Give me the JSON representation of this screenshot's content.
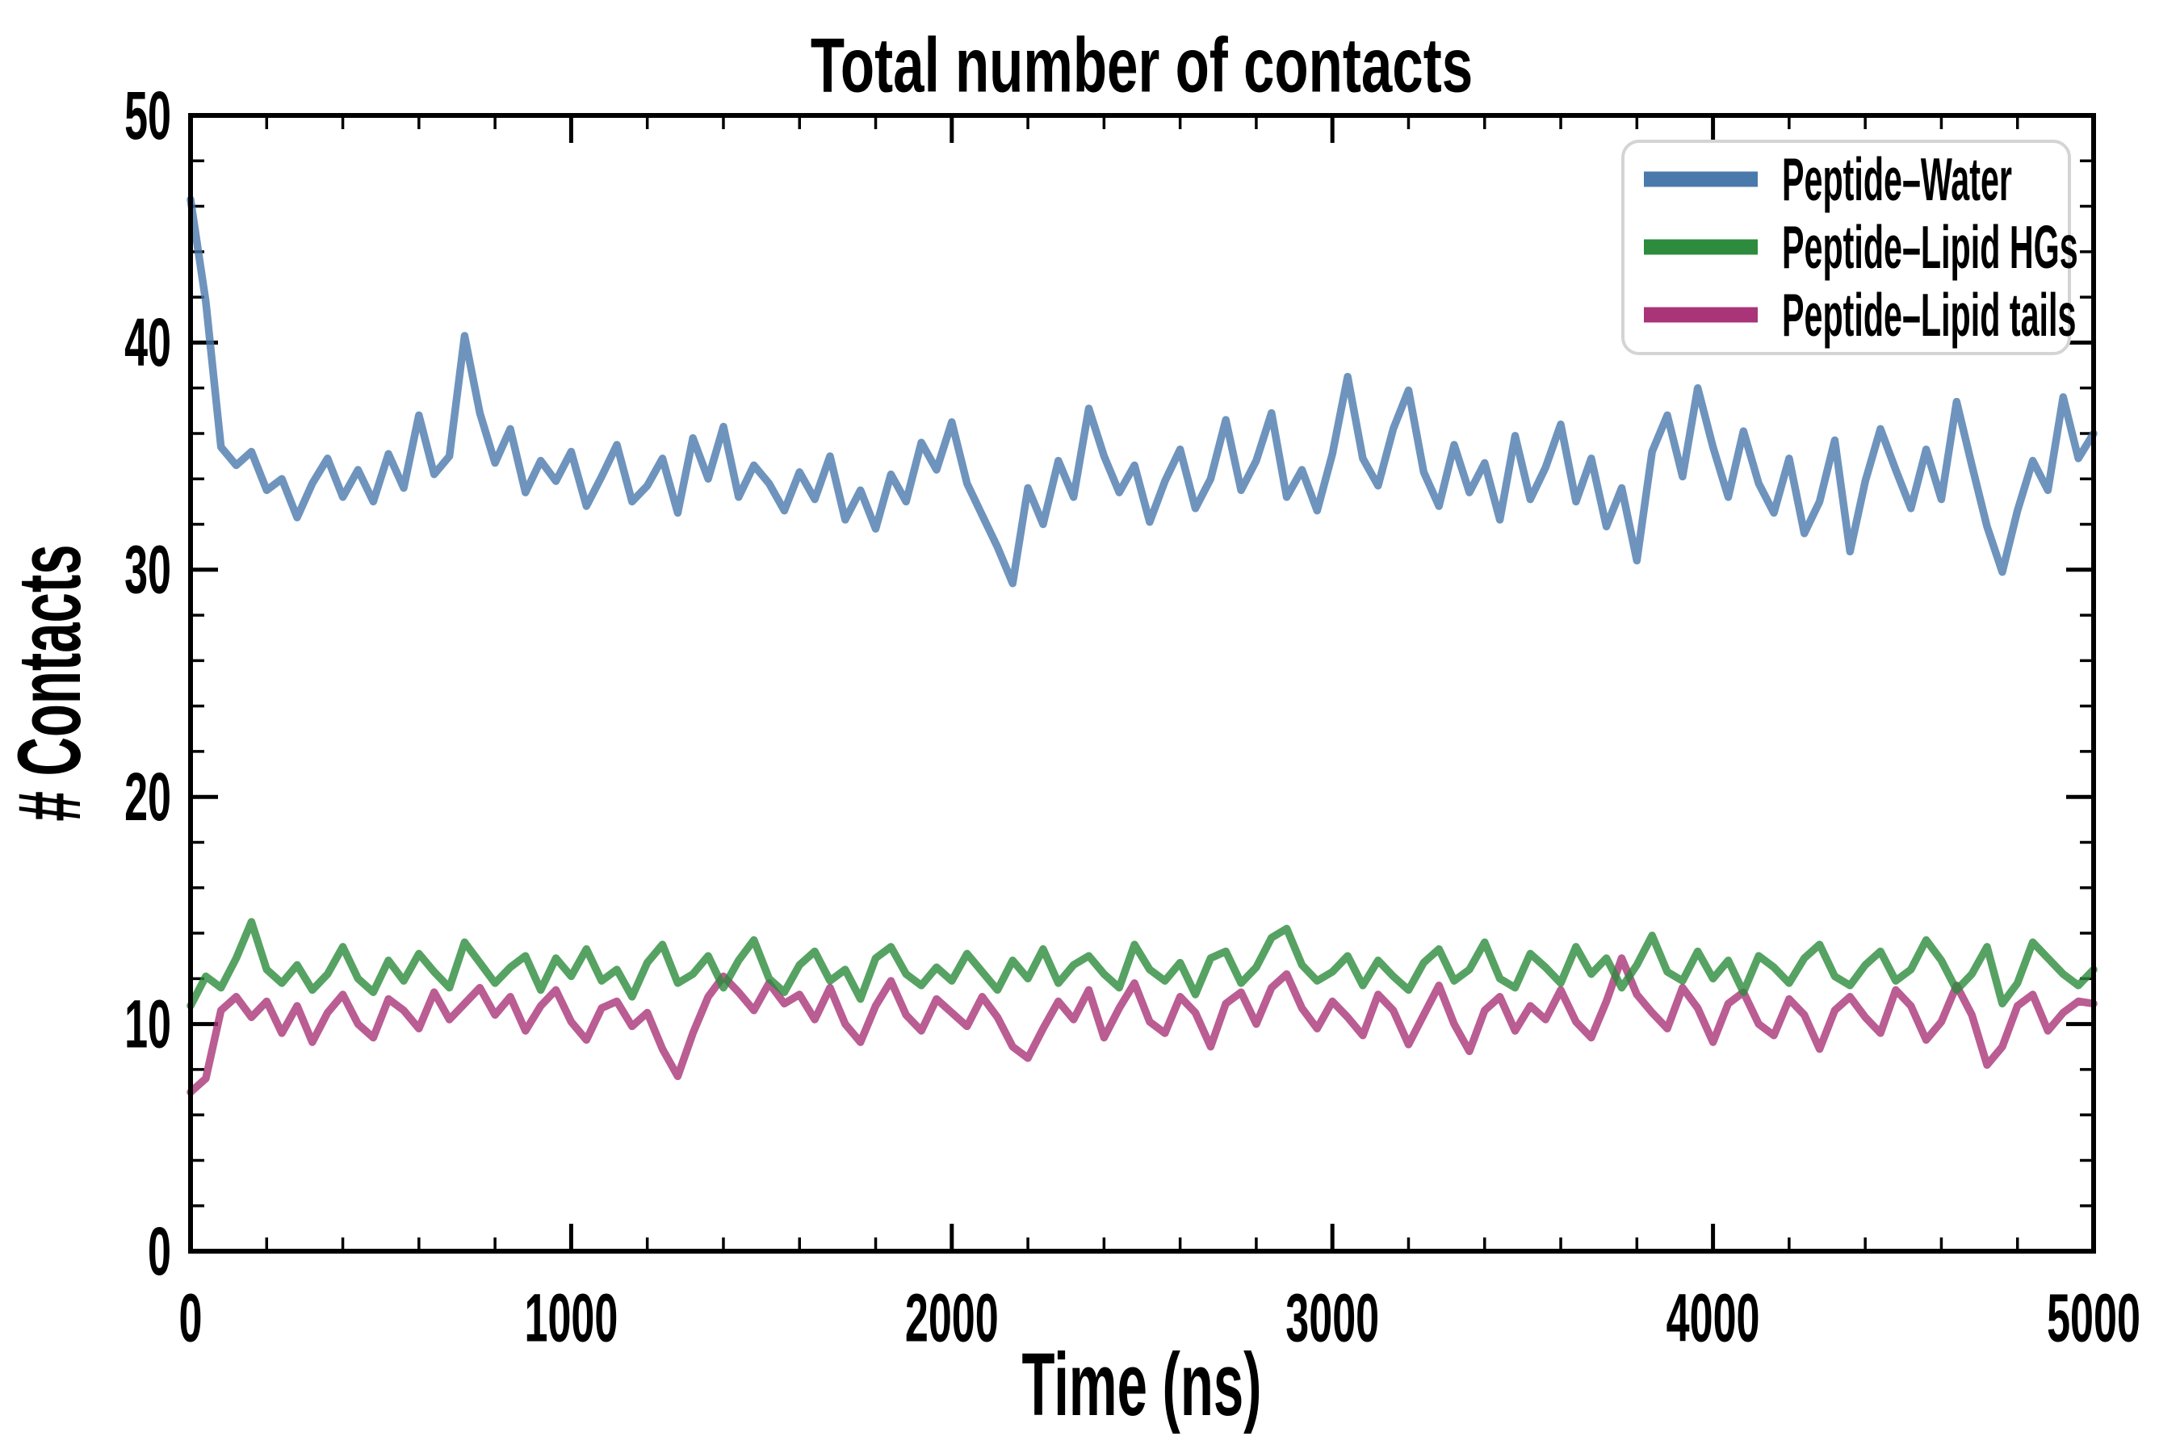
{
  "chart_data": {
    "type": "line",
    "title": "Total number of contacts",
    "xlabel": "Time (ns)",
    "ylabel": "# Contacts",
    "xlim": [
      0,
      5000
    ],
    "ylim": [
      0,
      50
    ],
    "x_ticks": [
      0,
      1000,
      2000,
      3000,
      4000,
      5000
    ],
    "y_ticks": [
      0,
      10,
      20,
      30,
      40,
      50
    ],
    "x_minor_tick_step": 200,
    "y_minor_tick_step": 2,
    "grid": false,
    "legend": {
      "position": "upper right",
      "border_color": "#d4d4d4"
    },
    "x_start": 0,
    "x_step": 40,
    "series": [
      {
        "name": "Peptide–Water",
        "color": "#4a79ac",
        "opacity": 0.8,
        "values": [
          46.3,
          41.8,
          35.4,
          34.6,
          35.2,
          33.5,
          34.0,
          32.3,
          33.8,
          34.9,
          33.2,
          34.4,
          33.0,
          35.1,
          33.6,
          36.8,
          34.2,
          35.0,
          40.3,
          36.9,
          34.7,
          36.2,
          33.4,
          34.8,
          33.9,
          35.2,
          32.8,
          34.1,
          35.5,
          33.0,
          33.7,
          34.9,
          32.5,
          35.8,
          34.0,
          36.3,
          33.2,
          34.6,
          33.8,
          32.6,
          34.3,
          33.1,
          35.0,
          32.2,
          33.5,
          31.8,
          34.2,
          33.0,
          35.6,
          34.4,
          36.5,
          33.8,
          32.4,
          31.0,
          29.4,
          33.6,
          32.0,
          34.8,
          33.2,
          37.1,
          35.0,
          33.4,
          34.6,
          32.1,
          33.9,
          35.3,
          32.7,
          34.0,
          36.6,
          33.5,
          34.8,
          36.9,
          33.2,
          34.4,
          32.6,
          35.1,
          38.5,
          34.9,
          33.7,
          36.2,
          37.9,
          34.3,
          32.8,
          35.5,
          33.4,
          34.7,
          32.2,
          35.9,
          33.1,
          34.5,
          36.4,
          33.0,
          34.9,
          31.9,
          33.6,
          30.4,
          35.2,
          36.8,
          34.1,
          38.0,
          35.4,
          33.2,
          36.1,
          33.8,
          32.5,
          34.9,
          31.6,
          33.0,
          35.7,
          30.8,
          33.9,
          36.2,
          34.4,
          32.7,
          35.3,
          33.1,
          37.4,
          34.6,
          31.9,
          29.9,
          32.6,
          34.8,
          33.5,
          37.6,
          34.9,
          36.0
        ]
      },
      {
        "name": "Peptide–Lipid HGs",
        "color": "#2c8b3c",
        "opacity": 0.8,
        "values": [
          10.8,
          12.1,
          11.6,
          12.9,
          14.5,
          12.4,
          11.8,
          12.6,
          11.5,
          12.2,
          13.4,
          12.0,
          11.4,
          12.8,
          11.9,
          13.1,
          12.3,
          11.6,
          13.6,
          12.7,
          11.8,
          12.5,
          13.0,
          11.5,
          12.9,
          12.1,
          13.3,
          11.9,
          12.4,
          11.2,
          12.7,
          13.5,
          11.8,
          12.2,
          13.0,
          11.6,
          12.8,
          13.7,
          12.0,
          11.4,
          12.6,
          13.2,
          11.9,
          12.4,
          11.1,
          12.9,
          13.4,
          12.2,
          11.7,
          12.5,
          11.9,
          13.1,
          12.3,
          11.5,
          12.8,
          12.0,
          13.3,
          11.8,
          12.6,
          13.0,
          12.2,
          11.6,
          13.5,
          12.4,
          11.9,
          12.7,
          11.3,
          12.9,
          13.2,
          11.8,
          12.5,
          13.8,
          14.2,
          12.6,
          11.9,
          12.3,
          13.0,
          11.7,
          12.8,
          12.1,
          11.5,
          12.7,
          13.3,
          11.9,
          12.4,
          13.6,
          12.0,
          11.6,
          13.1,
          12.5,
          11.8,
          13.4,
          12.2,
          12.9,
          11.6,
          12.6,
          13.9,
          12.3,
          11.9,
          13.2,
          12.0,
          12.8,
          11.4,
          13.0,
          12.5,
          11.8,
          12.9,
          13.5,
          12.1,
          11.7,
          12.6,
          13.2,
          11.9,
          12.4,
          13.7,
          12.8,
          11.5,
          12.2,
          13.4,
          10.9,
          11.8,
          13.6,
          12.9,
          12.2,
          11.7,
          12.4
        ]
      },
      {
        "name": "Peptide–Lipid tails",
        "color": "#a93478",
        "opacity": 0.8,
        "values": [
          7.0,
          7.6,
          10.6,
          11.2,
          10.3,
          11.0,
          9.6,
          10.8,
          9.2,
          10.5,
          11.3,
          10.0,
          9.4,
          11.1,
          10.6,
          9.8,
          11.4,
          10.2,
          10.9,
          11.6,
          10.4,
          11.2,
          9.7,
          10.8,
          11.5,
          10.1,
          9.3,
          10.7,
          11.0,
          9.9,
          10.5,
          8.9,
          7.7,
          9.6,
          11.2,
          12.1,
          11.4,
          10.6,
          11.8,
          10.9,
          11.3,
          10.2,
          11.6,
          10.0,
          9.2,
          10.8,
          11.9,
          10.4,
          9.7,
          11.1,
          10.5,
          9.9,
          11.2,
          10.3,
          9.0,
          8.5,
          9.8,
          11.0,
          10.2,
          11.5,
          9.4,
          10.7,
          11.8,
          10.1,
          9.6,
          11.2,
          10.5,
          9.0,
          10.9,
          11.4,
          10.0,
          11.6,
          12.2,
          10.7,
          9.8,
          11.0,
          10.3,
          9.5,
          11.3,
          10.6,
          9.1,
          10.4,
          11.7,
          10.0,
          8.8,
          10.6,
          11.2,
          9.7,
          10.8,
          10.2,
          11.5,
          10.1,
          9.4,
          11.0,
          12.9,
          11.3,
          10.5,
          9.8,
          11.6,
          10.7,
          9.2,
          10.9,
          11.4,
          10.0,
          9.5,
          11.1,
          10.4,
          8.9,
          10.6,
          11.2,
          10.3,
          9.6,
          11.5,
          10.8,
          9.3,
          10.1,
          11.7,
          10.4,
          8.2,
          9.0,
          10.8,
          11.3,
          9.7,
          10.5,
          11.0,
          10.9
        ]
      }
    ]
  }
}
